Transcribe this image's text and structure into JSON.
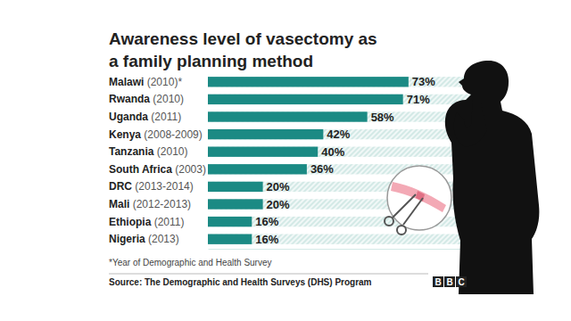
{
  "chart_data": {
    "type": "bar",
    "orientation": "horizontal",
    "title": "Awareness level of vasectomy as a family planning method",
    "categories": [
      "Malawi (2010)*",
      "Rwanda (2010)",
      "Uganda (2011)",
      "Kenya (2008-2009)",
      "Tanzania (2010)",
      "South Africa (2003)",
      "DRC (2013-2014)",
      "Mali  (2012-2013)",
      "Ethiopia  (2011)",
      "Nigeria (2013)"
    ],
    "values": [
      73,
      71,
      58,
      42,
      40,
      36,
      20,
      20,
      16,
      16
    ],
    "value_labels": [
      "73%",
      "71%",
      "58%",
      "42%",
      "40%",
      "36%",
      "20%",
      "20%",
      "16%",
      "16%"
    ],
    "color": "#1b8a84",
    "xlim": [
      0,
      100
    ],
    "data_labels": true,
    "tick_labels": false,
    "grid": false,
    "footnote": "*Year of Demographic and Health Survey",
    "source": "Source: The Demographic and Health Surveys (DHS) Program",
    "logo": "BBC"
  }
}
